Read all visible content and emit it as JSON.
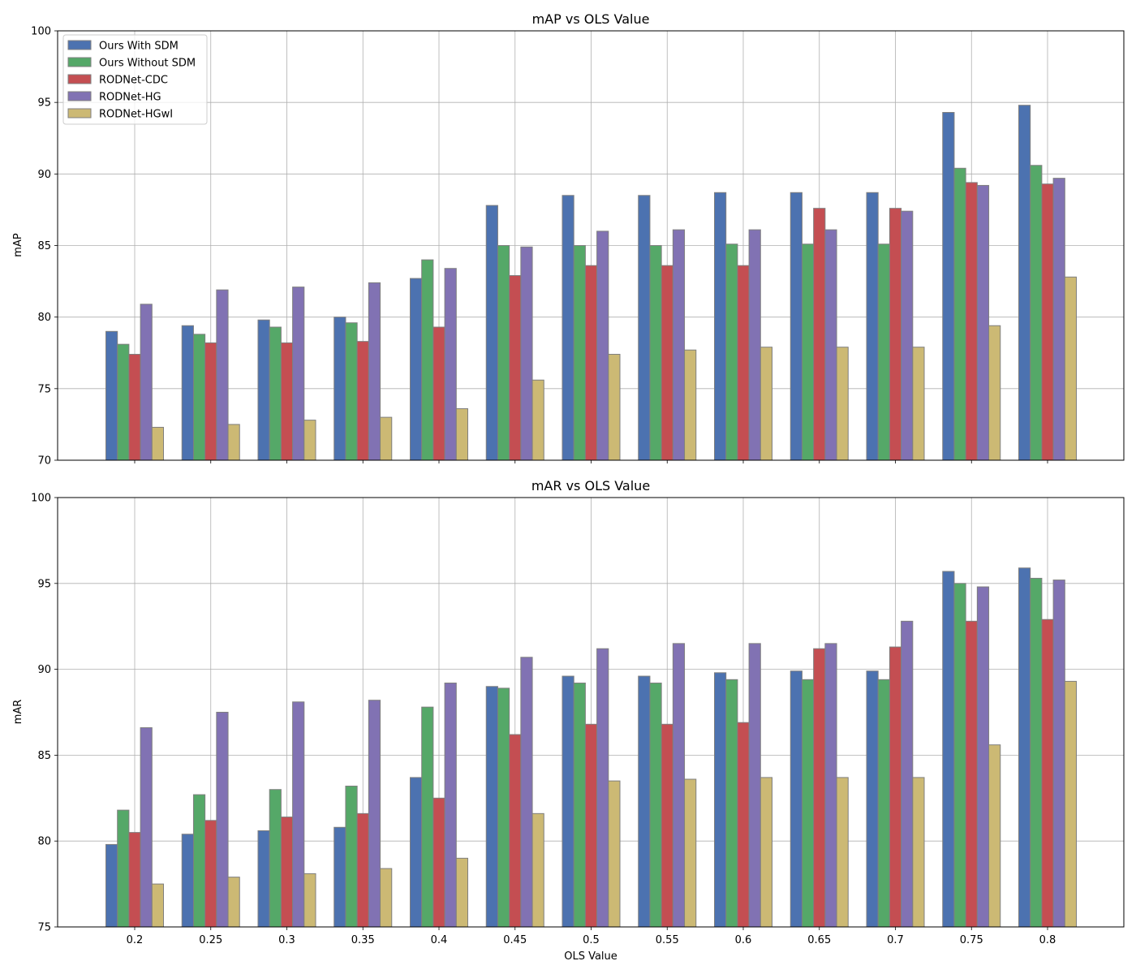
{
  "colors": {
    "Ours With SDM": "#4c72b0",
    "Ours Without SDM": "#55a868",
    "RODNet-CDC": "#c44e52",
    "RODNet-HG": "#8172b3",
    "RODNet-HGwI": "#ccb974",
    "grid": "#b0b0b0",
    "bar_edge": "#7f7f7f"
  },
  "chart_data": [
    {
      "type": "bar",
      "title": "mAP vs OLS Value",
      "xlabel": "",
      "ylabel": "mAP",
      "ylim": [
        70,
        100
      ],
      "yticks": [
        70,
        75,
        80,
        85,
        90,
        95,
        100
      ],
      "grid": true,
      "legend": "top-left",
      "categories": [
        "0.2",
        "0.25",
        "0.3",
        "0.35",
        "0.4",
        "0.45",
        "0.5",
        "0.55",
        "0.6",
        "0.65",
        "0.7",
        "0.75",
        "0.8"
      ],
      "series": [
        {
          "name": "Ours With SDM",
          "values": [
            79.0,
            79.4,
            79.8,
            80.0,
            82.7,
            87.8,
            88.5,
            88.5,
            88.7,
            88.7,
            88.7,
            94.3,
            94.8
          ]
        },
        {
          "name": "Ours Without SDM",
          "values": [
            78.1,
            78.8,
            79.3,
            79.6,
            84.0,
            85.0,
            85.0,
            85.0,
            85.1,
            85.1,
            85.1,
            90.4,
            90.6
          ]
        },
        {
          "name": "RODNet-CDC",
          "values": [
            77.4,
            78.2,
            78.2,
            78.3,
            79.3,
            82.9,
            83.6,
            83.6,
            83.6,
            87.6,
            87.6,
            89.4,
            89.3
          ]
        },
        {
          "name": "RODNet-HG",
          "values": [
            80.9,
            81.9,
            82.1,
            82.4,
            83.4,
            84.9,
            86.0,
            86.1,
            86.1,
            86.1,
            87.4,
            89.2,
            89.7
          ]
        },
        {
          "name": "RODNet-HGwI",
          "values": [
            72.3,
            72.5,
            72.8,
            73.0,
            73.6,
            75.6,
            77.4,
            77.7,
            77.9,
            77.9,
            77.9,
            79.4,
            82.8
          ]
        }
      ]
    },
    {
      "type": "bar",
      "title": "mAR vs OLS Value",
      "xlabel": "OLS Value",
      "ylabel": "mAR",
      "ylim": [
        75,
        100
      ],
      "yticks": [
        75,
        80,
        85,
        90,
        95,
        100
      ],
      "grid": true,
      "legend": "",
      "categories": [
        "0.2",
        "0.25",
        "0.3",
        "0.35",
        "0.4",
        "0.45",
        "0.5",
        "0.55",
        "0.6",
        "0.65",
        "0.7",
        "0.75",
        "0.8"
      ],
      "series": [
        {
          "name": "Ours With SDM",
          "values": [
            79.8,
            80.4,
            80.6,
            80.8,
            83.7,
            89.0,
            89.6,
            89.6,
            89.8,
            89.9,
            89.9,
            95.7,
            95.9
          ]
        },
        {
          "name": "Ours Without SDM",
          "values": [
            81.8,
            82.7,
            83.0,
            83.2,
            87.8,
            88.9,
            89.2,
            89.2,
            89.4,
            89.4,
            89.4,
            95.0,
            95.3
          ]
        },
        {
          "name": "RODNet-CDC",
          "values": [
            80.5,
            81.2,
            81.4,
            81.6,
            82.5,
            86.2,
            86.8,
            86.8,
            86.9,
            91.2,
            91.3,
            92.8,
            92.9
          ]
        },
        {
          "name": "RODNet-HG",
          "values": [
            86.6,
            87.5,
            88.1,
            88.2,
            89.2,
            90.7,
            91.2,
            91.5,
            91.5,
            91.5,
            92.8,
            94.8,
            95.2
          ]
        },
        {
          "name": "RODNet-HGwI",
          "values": [
            77.5,
            77.9,
            78.1,
            78.4,
            79.0,
            81.6,
            83.5,
            83.6,
            83.7,
            83.7,
            83.7,
            85.6,
            89.3
          ]
        }
      ]
    }
  ]
}
